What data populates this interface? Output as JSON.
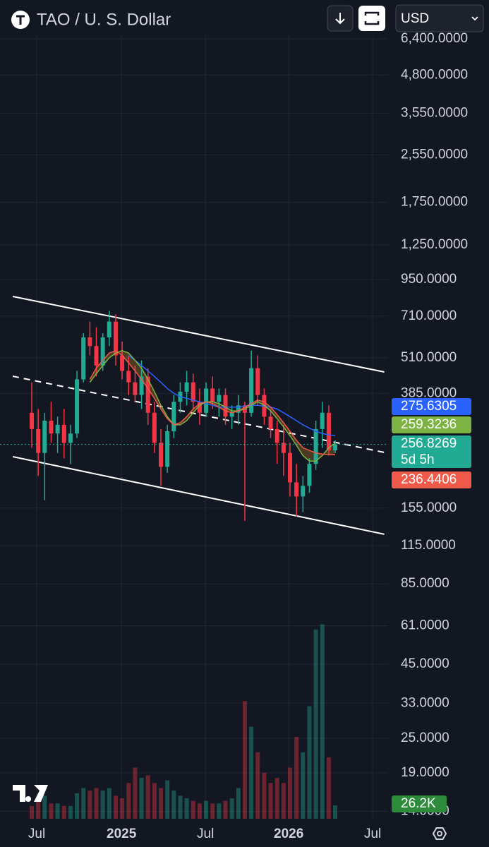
{
  "header": {
    "title": "TAO / U. S. Dollar",
    "currency": "USD"
  },
  "chart_data": {
    "type": "candlestick",
    "log_scale": true,
    "grid": true,
    "up_color": "#22ab94",
    "down_color": "#f23645",
    "xlim": [
      -4.92,
      55.19
    ],
    "xticks": [
      {
        "value": 0.77,
        "label": "Jul"
      },
      {
        "value": 13.9,
        "label": "2025"
      },
      {
        "value": 26.9,
        "label": "Jul"
      },
      {
        "value": 39.8,
        "label": "2026"
      },
      {
        "value": 52.8,
        "label": "Jul"
      }
    ],
    "ylim": [
      13.2,
      6960
    ],
    "yticks": [
      {
        "value": 6400,
        "label": "6,400.0000"
      },
      {
        "value": 4800,
        "label": "4,800.0000"
      },
      {
        "value": 3550,
        "label": "3,550.0000"
      },
      {
        "value": 2550,
        "label": "2,550.0000"
      },
      {
        "value": 1750,
        "label": "1,750.0000"
      },
      {
        "value": 1250,
        "label": "1,250.0000"
      },
      {
        "value": 950,
        "label": "950.0000"
      },
      {
        "value": 710,
        "label": "710.0000"
      },
      {
        "value": 510,
        "label": "510.0000"
      },
      {
        "value": 385,
        "label": "385.0000"
      },
      {
        "value": 155,
        "label": "155.0000"
      },
      {
        "value": 115,
        "label": "115.0000"
      },
      {
        "value": 85,
        "label": "85.0000"
      },
      {
        "value": 61,
        "label": "61.0000"
      },
      {
        "value": 45,
        "label": "45.0000"
      },
      {
        "value": 33,
        "label": "33.0000"
      },
      {
        "value": 25,
        "label": "25.0000"
      },
      {
        "value": 19,
        "label": "19.0000"
      },
      {
        "value": 14,
        "label": "14.0000"
      }
    ],
    "candles": {
      "open": [
        330,
        290,
        240,
        310,
        280,
        300,
        260,
        280,
        430,
        600,
        560,
        480,
        600,
        680,
        520,
        460,
        420,
        380,
        440,
        330,
        260,
        215,
        285,
        360,
        390,
        420,
        360,
        330,
        400,
        360,
        380,
        320,
        330,
        350,
        330,
        470,
        380,
        320,
        290,
        260,
        240,
        190,
        170,
        185,
        220,
        290,
        330,
        245
      ],
      "high": [
        420,
        340,
        330,
        360,
        320,
        340,
        300,
        460,
        620,
        680,
        650,
        620,
        740,
        720,
        580,
        520,
        480,
        500,
        470,
        360,
        290,
        300,
        380,
        420,
        460,
        450,
        400,
        420,
        440,
        400,
        400,
        350,
        380,
        360,
        540,
        520,
        400,
        340,
        310,
        300,
        260,
        220,
        200,
        230,
        310,
        360,
        350,
        265
      ],
      "low": [
        250,
        200,
        165,
        260,
        240,
        230,
        220,
        270,
        420,
        520,
        440,
        460,
        560,
        480,
        430,
        380,
        360,
        340,
        300,
        240,
        185,
        205,
        270,
        330,
        350,
        340,
        300,
        320,
        340,
        320,
        300,
        290,
        300,
        140,
        320,
        350,
        300,
        270,
        220,
        200,
        170,
        145,
        150,
        175,
        210,
        250,
        235,
        240
      ],
      "close": [
        290,
        240,
        310,
        280,
        300,
        260,
        280,
        430,
        600,
        560,
        480,
        600,
        680,
        520,
        460,
        420,
        380,
        440,
        330,
        260,
        215,
        285,
        360,
        390,
        420,
        360,
        330,
        400,
        360,
        380,
        320,
        330,
        350,
        330,
        470,
        380,
        320,
        290,
        260,
        240,
        190,
        170,
        185,
        220,
        290,
        330,
        245,
        256.8269
      ]
    },
    "countdown": "5d 5h",
    "moving_averages": [
      {
        "color": "#2962ff",
        "values": [
          null,
          null,
          null,
          null,
          null,
          null,
          null,
          null,
          null,
          null,
          null,
          null,
          null,
          null,
          null,
          520,
          500,
          480,
          460,
          440,
          420,
          400,
          385,
          375,
          370,
          365,
          360,
          355,
          350,
          345,
          345,
          345,
          345,
          348,
          350,
          350,
          348,
          345,
          340,
          330,
          320,
          310,
          300,
          292,
          285,
          280,
          277,
          275.6305
        ]
      },
      {
        "color": "#7cb342",
        "values": [
          null,
          null,
          null,
          null,
          null,
          null,
          null,
          null,
          null,
          420,
          450,
          480,
          510,
          530,
          540,
          530,
          500,
          470,
          430,
          390,
          350,
          320,
          300,
          300,
          310,
          330,
          350,
          360,
          360,
          355,
          345,
          335,
          335,
          340,
          350,
          360,
          350,
          335,
          315,
          295,
          275,
          255,
          235,
          225,
          225,
          235,
          250,
          259.3236
        ]
      },
      {
        "color": "#f05a4a",
        "values": [
          null,
          null,
          null,
          null,
          null,
          null,
          null,
          null,
          null,
          430,
          470,
          500,
          530,
          540,
          520,
          490,
          460,
          430,
          400,
          370,
          340,
          315,
          300,
          305,
          320,
          340,
          355,
          360,
          355,
          345,
          335,
          330,
          335,
          345,
          355,
          365,
          360,
          345,
          325,
          305,
          285,
          265,
          250,
          245,
          240,
          238,
          237,
          236.4406
        ]
      }
    ],
    "trendlines": [
      {
        "dashed": false,
        "x": [
          -2.95,
          54.6
        ],
        "y": [
          830,
          456
        ]
      },
      {
        "dashed": true,
        "x": [
          -2.95,
          54.6
        ],
        "y": [
          441,
          241
        ]
      },
      {
        "dashed": false,
        "x": [
          -2.95,
          54.6
        ],
        "y": [
          233,
          126
        ]
      }
    ],
    "volume": {
      "ylim": [
        0,
        400000
      ],
      "values": [
        25000,
        40000,
        45000,
        30000,
        30000,
        25000,
        25000,
        50000,
        60000,
        55000,
        60000,
        55000,
        60000,
        45000,
        40000,
        70000,
        100000,
        80000,
        85000,
        70000,
        60000,
        75000,
        55000,
        45000,
        40000,
        35000,
        30000,
        35000,
        30000,
        30000,
        35000,
        40000,
        60000,
        230000,
        180000,
        130000,
        90000,
        70000,
        80000,
        70000,
        100000,
        160000,
        130000,
        220000,
        370000,
        380000,
        120000,
        26200
      ],
      "value_labels": [
        null,
        null,
        null,
        null,
        null,
        null,
        null,
        null,
        null,
        null,
        null,
        null,
        null,
        null,
        null,
        null,
        null,
        null,
        null,
        null,
        null,
        null,
        null,
        null,
        null,
        null,
        null,
        null,
        null,
        null,
        null,
        null,
        null,
        null,
        null,
        null,
        null,
        null,
        null,
        null,
        null,
        null,
        null,
        null,
        null,
        null,
        null,
        "26.2K"
      ]
    }
  }
}
